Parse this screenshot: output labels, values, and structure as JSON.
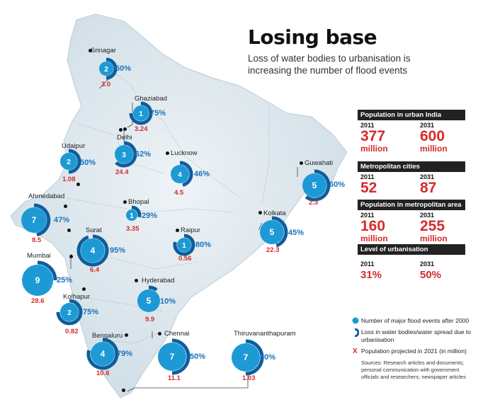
{
  "header": {
    "title": "Losing base",
    "subtitle": "Loss of water bodies to urbanisation is increasing the number of flood events"
  },
  "colors": {
    "event_blue": "#1d9ad6",
    "loss_blue": "#0f5e9c",
    "pct_blue": "#1a73b9",
    "population_red": "#d52b2b",
    "panel_header": "#222222",
    "map_fill": "#dbe6ec"
  },
  "cities": [
    {
      "name": "Srinagar",
      "events": "2",
      "loss_pct": "50%",
      "loss": 50,
      "population": "3.0"
    },
    {
      "name": "Ghaziabad",
      "events": "1",
      "loss_pct": "75%",
      "loss": 75,
      "population": "3.24"
    },
    {
      "name": "Delhi",
      "events": "3",
      "loss_pct": "62%",
      "loss": 62,
      "population": "24.4"
    },
    {
      "name": "Udaipur",
      "events": "2",
      "loss_pct": "50%",
      "loss": 50,
      "population": "1.08"
    },
    {
      "name": "Lucknow",
      "events": "4",
      "loss_pct": "46%",
      "loss": 46,
      "population": "4.5"
    },
    {
      "name": "Guwahati",
      "events": "5",
      "loss_pct": "60%",
      "loss": 60,
      "population": "2.3"
    },
    {
      "name": "Ahmedabad",
      "events": "7",
      "loss_pct": "47%",
      "loss": 47,
      "population": "8.5"
    },
    {
      "name": "Bhopal",
      "events": "1",
      "loss_pct": "29%",
      "loss": 29,
      "population": "3.35"
    },
    {
      "name": "Surat",
      "events": "4",
      "loss_pct": "95%",
      "loss": 95,
      "population": "6.4"
    },
    {
      "name": "Raipur",
      "events": "1",
      "loss_pct": "80%",
      "loss": 80,
      "population": "0.56"
    },
    {
      "name": "Kolkata",
      "events": "5",
      "loss_pct": "45%",
      "loss": 45,
      "population": "22.3"
    },
    {
      "name": "Mumbai",
      "events": "9",
      "loss_pct": "25%",
      "loss": 25,
      "population": "28.6"
    },
    {
      "name": "Hyderabad",
      "events": "5",
      "loss_pct": "10%",
      "loss": 10,
      "population": "9.9"
    },
    {
      "name": "Kolhapur",
      "events": "2",
      "loss_pct": "75%",
      "loss": 75,
      "population": "0.82"
    },
    {
      "name": "Bengaluru",
      "events": "4",
      "loss_pct": "79%",
      "loss": 79,
      "population": "10.6"
    },
    {
      "name": "Chennai",
      "events": "7",
      "loss_pct": "50%",
      "loss": 50,
      "population": "11.1"
    },
    {
      "name": "Thiruvananthapuram",
      "events": "7",
      "loss_pct": "50%",
      "loss": 50,
      "population": "1.03"
    }
  ],
  "stats": [
    {
      "heading": "Population in urban India",
      "y2011": "2011",
      "v2011": "377",
      "u2011": "million",
      "y2031": "2031",
      "v2031": "600",
      "u2031": "million"
    },
    {
      "heading": "Metropolitan cities",
      "y2011": "2011",
      "v2011": "52",
      "u2011": "",
      "y2031": "2031",
      "v2031": "87",
      "u2031": ""
    },
    {
      "heading": "Population in metropolitan area",
      "y2011": "2011",
      "v2011": "160",
      "u2011": "million",
      "y2031": "2031",
      "v2031": "255",
      "u2031": "million"
    },
    {
      "heading": "Level of urbanisation",
      "y2011": "2011",
      "v2011": "31%",
      "u2011": "",
      "y2031": "2031",
      "v2031": "50%",
      "u2031": ""
    }
  ],
  "legend": [
    {
      "icon": "blue-circle-icon",
      "text": "Number of major flood events after 2000"
    },
    {
      "icon": "blue-arc-icon",
      "text": "Loss in water bodies/water spread due to urbanisation"
    },
    {
      "icon": "red-cross-icon",
      "mark": "X",
      "text": "Population projected in 2021 (in million)"
    }
  ],
  "sources": "Sources: Research articles and documents; personal communication with government officials and researchers; newspaper articles"
}
